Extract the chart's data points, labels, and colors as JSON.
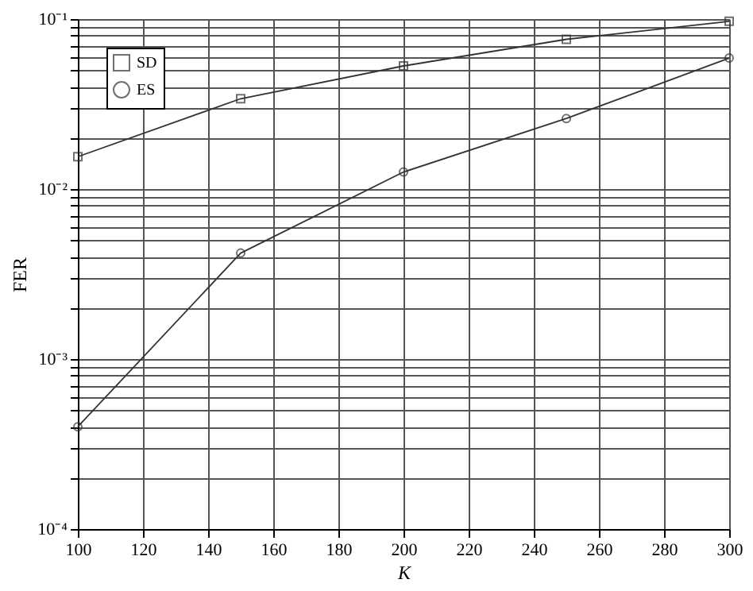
{
  "chart_data": {
    "type": "line",
    "xlabel": "K",
    "ylabel": "FER",
    "x": [
      100,
      150,
      200,
      250,
      300
    ],
    "series": [
      {
        "name": "SD",
        "color": "#333333",
        "marker": "square",
        "values": [
          0.0155,
          0.034,
          0.053,
          0.076,
          0.097
        ]
      },
      {
        "name": "ES",
        "color": "#333333",
        "marker": "circle",
        "values": [
          0.0004,
          0.0042,
          0.0126,
          0.026,
          0.059
        ]
      }
    ],
    "log": true,
    "grid": true,
    "legend": "top left",
    "line_style": "solid",
    "xlim": [
      100,
      300
    ],
    "xticks": [
      100,
      120,
      140,
      160,
      180,
      200,
      220,
      240,
      260,
      280,
      300
    ],
    "ylim": [
      0.0001,
      0.1
    ],
    "yticks": [
      {
        "value": 0.0001,
        "label": "10⁻⁴"
      },
      {
        "value": 0.0002,
        "label": null
      },
      {
        "value": 0.0003,
        "label": null
      },
      {
        "value": 0.0004,
        "label": null
      },
      {
        "value": 0.0005,
        "label": null
      },
      {
        "value": 0.0006,
        "label": null
      },
      {
        "value": 0.0007,
        "label": null
      },
      {
        "value": 0.0008,
        "label": null
      },
      {
        "value": 0.0009,
        "label": null
      },
      {
        "value": 0.001,
        "label": "10⁻³"
      },
      {
        "value": 0.002,
        "label": null
      },
      {
        "value": 0.003,
        "label": null
      },
      {
        "value": 0.004,
        "label": null
      },
      {
        "value": 0.005,
        "label": null
      },
      {
        "value": 0.006,
        "label": null
      },
      {
        "value": 0.007,
        "label": null
      },
      {
        "value": 0.008,
        "label": null
      },
      {
        "value": 0.009,
        "label": null
      },
      {
        "value": 0.01,
        "label": "10⁻²"
      },
      {
        "value": 0.02,
        "label": null
      },
      {
        "value": 0.03,
        "label": null
      },
      {
        "value": 0.04,
        "label": null
      },
      {
        "value": 0.05,
        "label": null
      },
      {
        "value": 0.06,
        "label": null
      },
      {
        "value": 0.07,
        "label": null
      },
      {
        "value": 0.08,
        "label": null
      },
      {
        "value": 0.09,
        "label": null
      },
      {
        "value": 0.1,
        "label": "10⁻¹"
      }
    ]
  }
}
